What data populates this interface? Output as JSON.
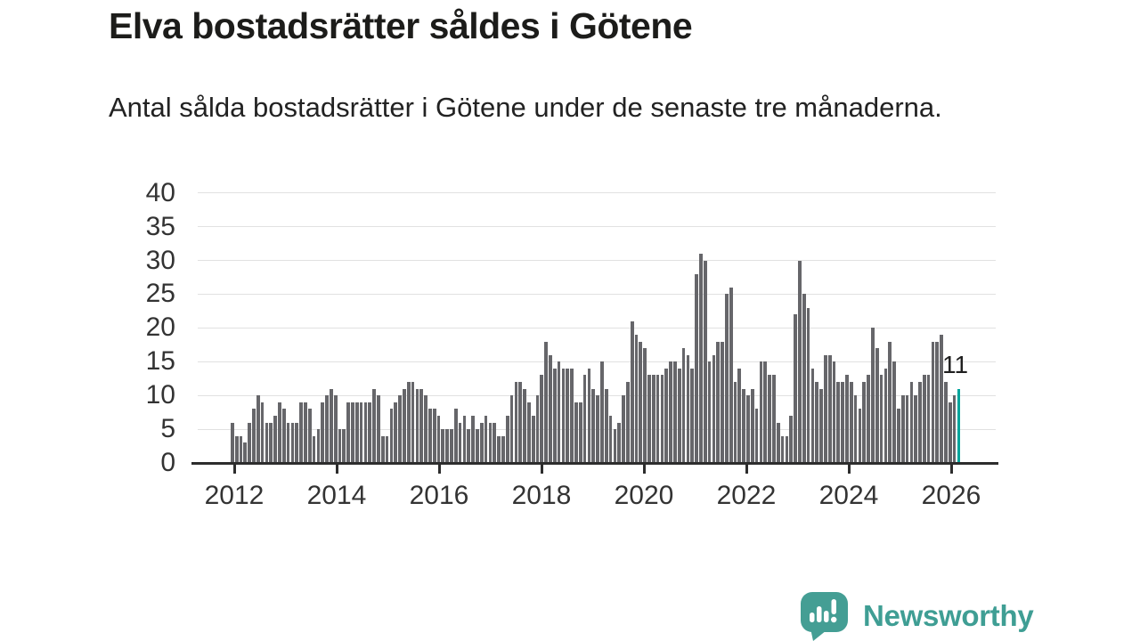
{
  "chart_data": {
    "type": "bar",
    "title": "Elva bostadsrätter såldes i Götene",
    "subtitle": "Antal sålda bostadsrätter i Götene under de senaste tre månaderna.",
    "x_unit": "month",
    "x_start": "2012-01",
    "x_end": "2026-02",
    "values": [
      6,
      4,
      4,
      3,
      6,
      8,
      10,
      9,
      6,
      6,
      7,
      9,
      8,
      6,
      6,
      6,
      9,
      9,
      8,
      4,
      5,
      9,
      10,
      11,
      10,
      5,
      5,
      9,
      9,
      9,
      9,
      9,
      9,
      11,
      10,
      4,
      4,
      8,
      9,
      10,
      11,
      12,
      12,
      11,
      11,
      10,
      8,
      8,
      7,
      5,
      5,
      5,
      8,
      6,
      7,
      5,
      7,
      5,
      6,
      7,
      6,
      6,
      4,
      4,
      7,
      10,
      12,
      12,
      11,
      9,
      7,
      10,
      13,
      18,
      16,
      14,
      15,
      14,
      14,
      14,
      9,
      9,
      13,
      14,
      11,
      10,
      15,
      11,
      7,
      5,
      6,
      10,
      12,
      21,
      19,
      18,
      17,
      13,
      13,
      13,
      13,
      14,
      15,
      15,
      14,
      17,
      16,
      14,
      28,
      31,
      30,
      15,
      16,
      18,
      18,
      25,
      26,
      12,
      14,
      11,
      10,
      11,
      8,
      15,
      15,
      13,
      13,
      6,
      4,
      4,
      7,
      22,
      30,
      25,
      23,
      14,
      12,
      11,
      16,
      16,
      15,
      12,
      12,
      13,
      12,
      10,
      8,
      12,
      13,
      20,
      17,
      13,
      14,
      18,
      15,
      8,
      10,
      10,
      12,
      10,
      12,
      13,
      13,
      18,
      18,
      19,
      12,
      9,
      10,
      11
    ],
    "highlight": {
      "index_from_end": 1,
      "value": 11,
      "label": "11",
      "color": "#00a59c"
    },
    "bar_color": "#66666a",
    "grid": true,
    "ylim": [
      0,
      40
    ],
    "yticks": [
      0,
      5,
      10,
      15,
      20,
      25,
      30,
      35,
      40
    ],
    "xticks": [
      "2012",
      "2014",
      "2016",
      "2018",
      "2020",
      "2022",
      "2024",
      "2026"
    ],
    "legend": "none"
  },
  "footer": {
    "brand": "Newsworthy",
    "logo_icon": "chart-speech-bubble-icon",
    "brand_color": "#449e94"
  }
}
